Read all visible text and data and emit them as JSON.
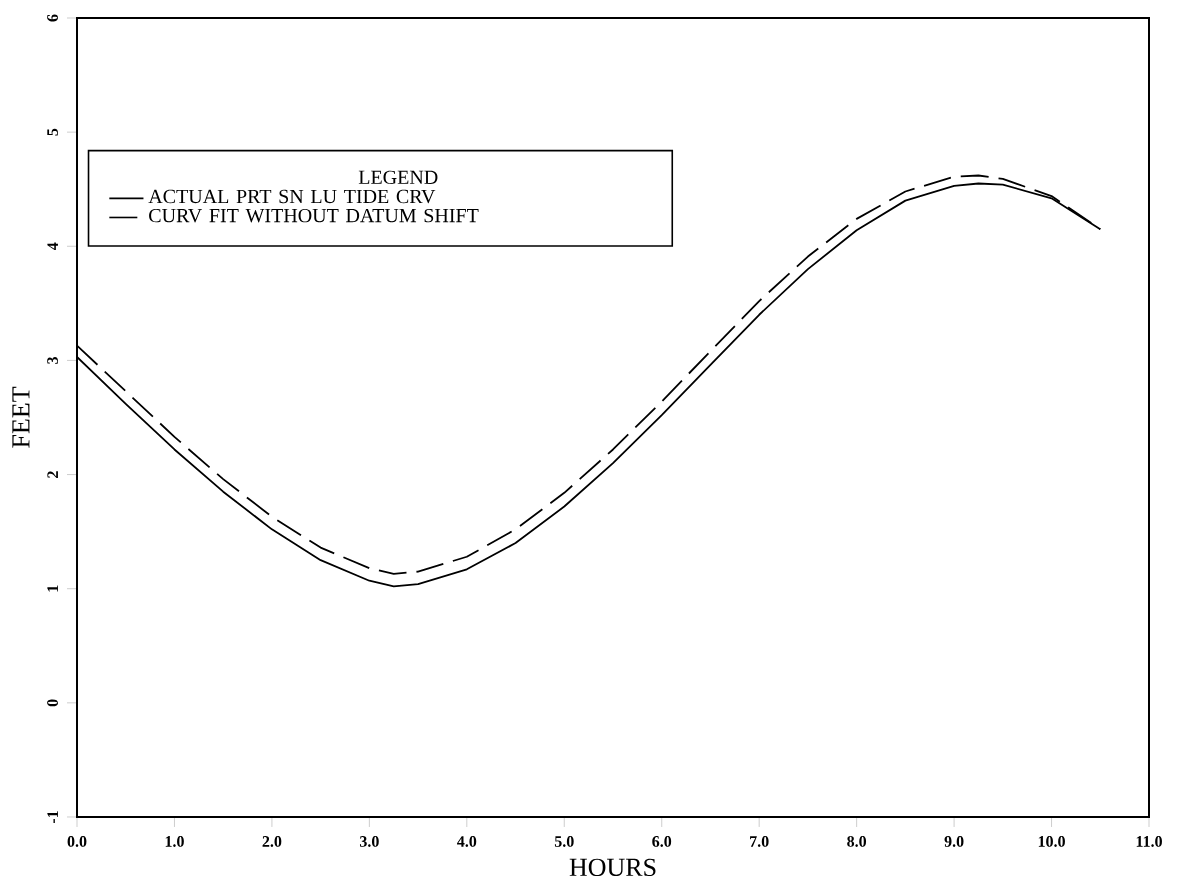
{
  "chart_data": {
    "type": "line",
    "xlabel": "HOURS",
    "ylabel": "FEET",
    "legend_title": "LEGEND",
    "legend": "top left",
    "xlim": [
      0,
      11
    ],
    "ylim": [
      -1,
      6
    ],
    "xticks": [
      {
        "value": 0,
        "label": "0.0"
      },
      {
        "value": 1,
        "label": "1.0"
      },
      {
        "value": 2,
        "label": "2.0"
      },
      {
        "value": 3,
        "label": "3.0"
      },
      {
        "value": 4,
        "label": "4.0"
      },
      {
        "value": 5,
        "label": "5.0"
      },
      {
        "value": 6,
        "label": "6.0"
      },
      {
        "value": 7,
        "label": "7.0"
      },
      {
        "value": 8,
        "label": "8.0"
      },
      {
        "value": 9,
        "label": "9.0"
      },
      {
        "value": 10,
        "label": "10.0"
      },
      {
        "value": 11,
        "label": "11.0"
      }
    ],
    "yticks": [
      -1,
      0,
      1,
      2,
      3,
      4,
      5,
      6
    ],
    "x": [
      0,
      0.5,
      1,
      1.5,
      2,
      2.5,
      3,
      3.25,
      3.5,
      4,
      4.5,
      5,
      5.5,
      6,
      6.5,
      7,
      7.5,
      8,
      8.5,
      9,
      9.25,
      9.5,
      10,
      10.5
    ],
    "series": [
      {
        "name": "ACTUAL PRT SN LU TIDE CRV",
        "color": "#000000",
        "line_style": "solid",
        "values": [
          3.03,
          2.62,
          2.22,
          1.85,
          1.52,
          1.25,
          1.07,
          1.02,
          1.04,
          1.17,
          1.4,
          1.72,
          2.1,
          2.52,
          2.96,
          3.4,
          3.8,
          4.14,
          4.4,
          4.53,
          4.55,
          4.54,
          4.42,
          4.15
        ]
      },
      {
        "name": "CURV FIT WITHOUT DATUM SHIFT",
        "color": "#000000",
        "line_style": "dashed",
        "values": [
          3.13,
          2.73,
          2.33,
          1.96,
          1.63,
          1.36,
          1.18,
          1.13,
          1.15,
          1.28,
          1.52,
          1.84,
          2.22,
          2.64,
          3.08,
          3.52,
          3.91,
          4.24,
          4.48,
          4.61,
          4.62,
          4.59,
          4.44,
          4.15
        ]
      }
    ]
  }
}
